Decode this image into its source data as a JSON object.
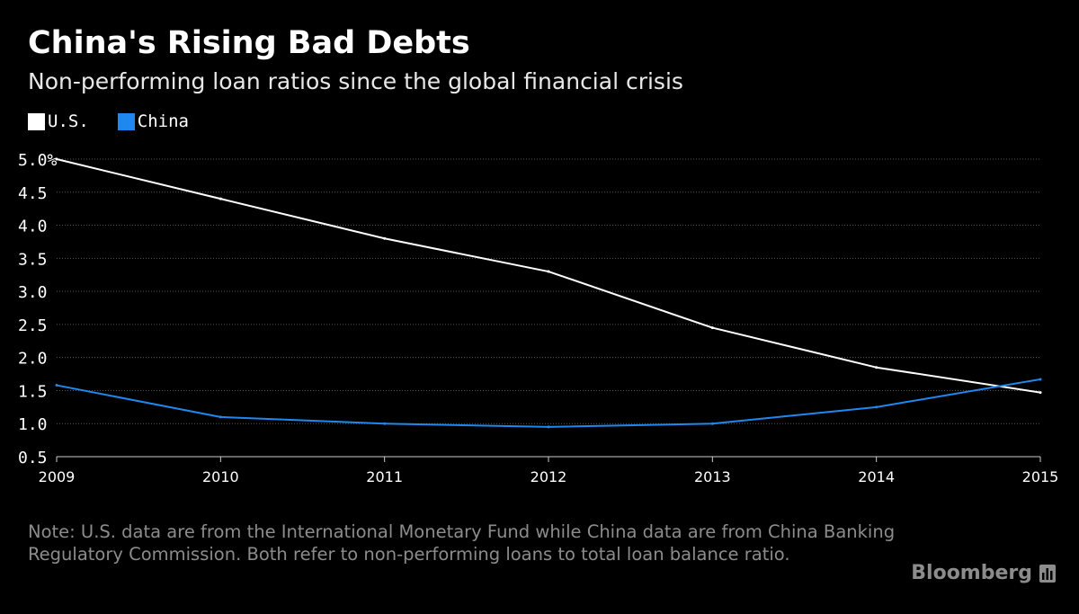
{
  "title": "China's Rising Bad Debts",
  "subtitle": "Non-performing loan ratios since the global financial crisis",
  "note": "Note: U.S. data are from the International Monetary Fund while China data are from China Banking Regulatory Commission. Both refer to non-performing loans to total loan balance ratio.",
  "brand": "Bloomberg",
  "brand_icon": "bloomberg-chart-icon",
  "colors": {
    "us": "#ffffff",
    "china": "#1e88ee",
    "background": "#000000",
    "grid": "#555555",
    "note": "#8c8c8c"
  },
  "chart_data": {
    "type": "line",
    "title": "China's Rising Bad Debts",
    "subtitle": "Non-performing loan ratios since the global financial crisis",
    "x": [
      2009,
      2010,
      2011,
      2012,
      2013,
      2014,
      2015
    ],
    "x_tick_labels": [
      "2009",
      "2010",
      "2011",
      "2012",
      "2013",
      "2014",
      "2015"
    ],
    "y_tick_labels": [
      "5.0%",
      "4.5",
      "4.0",
      "3.5",
      "3.0",
      "2.5",
      "2.0",
      "1.5",
      "1.0",
      "0.5"
    ],
    "ylim": [
      0.5,
      5.0
    ],
    "xlim": [
      2009,
      2015
    ],
    "grid": true,
    "legend": "top-left",
    "series": [
      {
        "name": "U.S.",
        "color": "#ffffff",
        "values": [
          5.0,
          4.4,
          3.8,
          3.3,
          2.45,
          1.85,
          1.47
        ]
      },
      {
        "name": "China",
        "color": "#1e88ee",
        "values": [
          1.58,
          1.1,
          1.0,
          0.95,
          1.0,
          1.25,
          1.67
        ]
      }
    ]
  }
}
